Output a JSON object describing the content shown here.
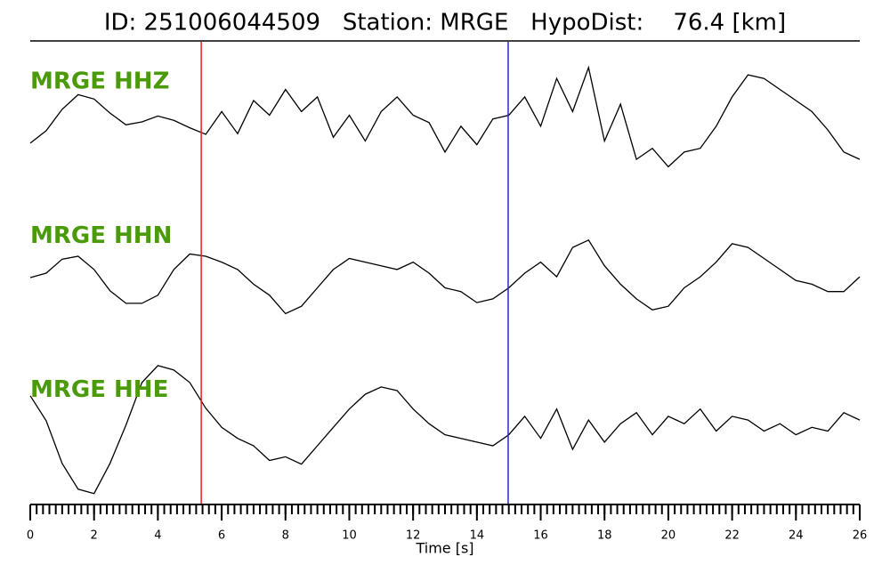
{
  "chart_data": {
    "type": "line",
    "title": "ID: 251006044509   Station: MRGE   HypoDist:    76.4 [km]",
    "xlabel": "Time [s]",
    "xlim": [
      0,
      26
    ],
    "xticks": [
      0,
      2,
      4,
      6,
      8,
      10,
      12,
      14,
      16,
      18,
      20,
      22,
      24,
      26
    ],
    "xminor_step": 0.2,
    "ylim": [
      -1,
      1
    ],
    "label_color": "#4a9a0a",
    "vlines": [
      {
        "x": 5.36,
        "color": "#e8201a"
      },
      {
        "x": 14.98,
        "color": "#2b2bc0"
      }
    ],
    "x": [
      0,
      0.5,
      1,
      1.5,
      2,
      2.5,
      3,
      3.5,
      4,
      4.5,
      5,
      5.5,
      6,
      6.5,
      7,
      7.5,
      8,
      8.5,
      9,
      9.5,
      10,
      10.5,
      11,
      11.5,
      12,
      12.5,
      13,
      13.5,
      14,
      14.5,
      15,
      15.5,
      16,
      16.5,
      17,
      17.5,
      18,
      18.5,
      19,
      19.5,
      20,
      20.5,
      21,
      21.5,
      22,
      22.5,
      23,
      23.5,
      24,
      24.5,
      25,
      25.5,
      26
    ],
    "series": [
      {
        "name": "MRGE HHZ",
        "color": "#000000",
        "values": [
          -0.33,
          -0.16,
          0.13,
          0.33,
          0.27,
          0.08,
          -0.08,
          -0.04,
          0.04,
          -0.02,
          -0.12,
          -0.21,
          0.1,
          -0.2,
          0.25,
          0.05,
          0.4,
          0.1,
          0.3,
          -0.25,
          0.05,
          -0.3,
          0.1,
          0.3,
          0.05,
          -0.05,
          -0.45,
          -0.1,
          -0.35,
          0.0,
          0.05,
          0.3,
          -0.1,
          0.55,
          0.1,
          0.7,
          -0.3,
          0.2,
          -0.55,
          -0.4,
          -0.65,
          -0.45,
          -0.4,
          -0.1,
          0.3,
          0.6,
          0.55,
          0.4,
          0.25,
          0.1,
          -0.15,
          -0.45,
          -0.55
        ]
      },
      {
        "name": "MRGE HHN",
        "color": "#000000",
        "values": [
          -0.06,
          0.0,
          0.19,
          0.23,
          0.05,
          -0.24,
          -0.41,
          -0.41,
          -0.3,
          0.05,
          0.26,
          0.23,
          0.15,
          0.05,
          -0.15,
          -0.3,
          -0.55,
          -0.45,
          -0.2,
          0.05,
          0.2,
          0.15,
          0.1,
          0.05,
          0.15,
          0.0,
          -0.2,
          -0.25,
          -0.4,
          -0.35,
          -0.2,
          0.0,
          0.15,
          -0.05,
          0.35,
          0.45,
          0.1,
          -0.15,
          -0.35,
          -0.5,
          -0.45,
          -0.2,
          -0.05,
          0.15,
          0.4,
          0.35,
          0.2,
          0.05,
          -0.1,
          -0.15,
          -0.25,
          -0.25,
          -0.05
        ]
      },
      {
        "name": "MRGE HHE",
        "color": "#000000",
        "values": [
          0.43,
          0.09,
          -0.49,
          -0.84,
          -0.9,
          -0.49,
          0.03,
          0.61,
          0.84,
          0.78,
          0.61,
          0.26,
          0.0,
          -0.15,
          -0.25,
          -0.45,
          -0.4,
          -0.5,
          -0.25,
          0.0,
          0.25,
          0.45,
          0.55,
          0.5,
          0.25,
          0.05,
          -0.1,
          -0.15,
          -0.2,
          -0.25,
          -0.1,
          0.15,
          -0.15,
          0.25,
          -0.3,
          0.1,
          -0.2,
          0.05,
          0.2,
          -0.1,
          0.15,
          0.05,
          0.25,
          -0.05,
          0.15,
          0.1,
          -0.05,
          0.05,
          -0.1,
          0.0,
          -0.05,
          0.2,
          0.1
        ]
      }
    ]
  }
}
